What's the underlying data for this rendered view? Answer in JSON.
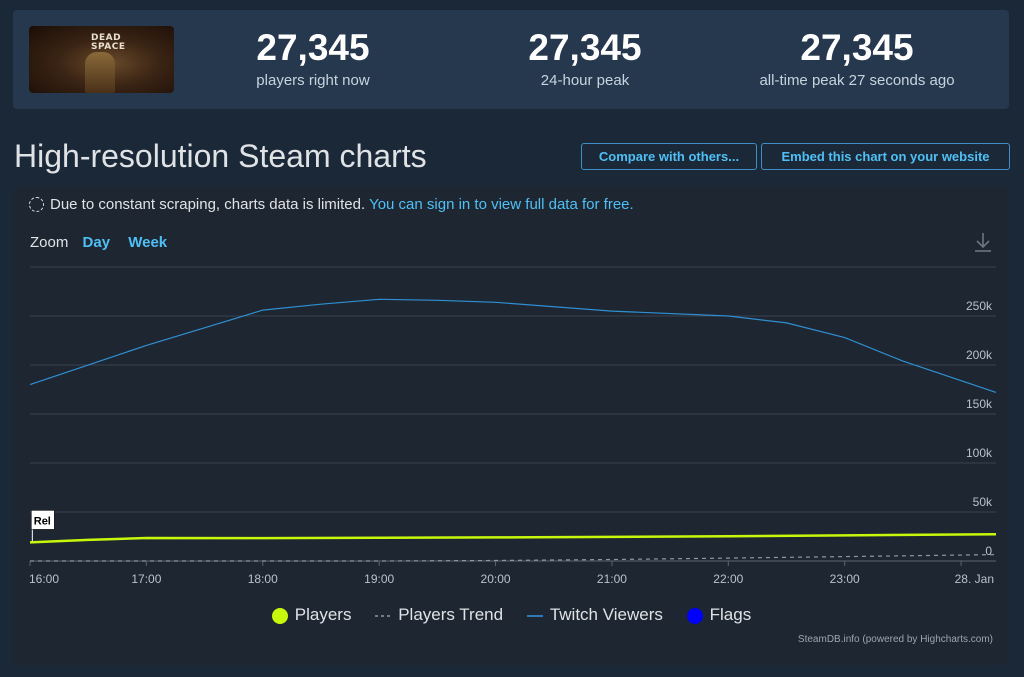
{
  "stats": {
    "game_logo_text": "DEAD SPACE",
    "players_now": {
      "value": "27,345",
      "label": "players right now"
    },
    "peak_24h": {
      "value": "27,345",
      "label": "24-hour peak"
    },
    "peak_all": {
      "value": "27,345",
      "label": "all-time peak 27 seconds ago"
    }
  },
  "page_title": "High-resolution Steam charts",
  "buttons": {
    "compare": "Compare with others...",
    "embed": "Embed this chart on your website"
  },
  "notice": {
    "text": "Due to constant scraping, charts data is limited.",
    "link": "You can sign in to view full data for free."
  },
  "zoom": {
    "label": "Zoom",
    "options": [
      "Day",
      "Week"
    ]
  },
  "chart_data": {
    "type": "line",
    "x_ticks": [
      "16:00",
      "17:00",
      "18:00",
      "19:00",
      "20:00",
      "21:00",
      "22:00",
      "23:00",
      "28. Jan"
    ],
    "y_ticks": [
      "0",
      "50k",
      "100k",
      "150k",
      "200k",
      "250k"
    ],
    "ylim": [
      0,
      300000
    ],
    "xlim": [
      16,
      24.3
    ],
    "grid": true,
    "legend_position": "bottom",
    "series": [
      {
        "name": "Players",
        "color": "#c7f70a",
        "x": [
          16.0,
          16.5,
          17.0,
          18.0,
          19.0,
          20.0,
          21.0,
          22.0,
          23.0,
          24.3
        ],
        "values": [
          19000,
          21500,
          23500,
          23400,
          23700,
          24100,
          24600,
          25300,
          26100,
          27345
        ]
      },
      {
        "name": "Players Trend",
        "color": "#8f98a0",
        "x": [
          16.0,
          17.0,
          18.0,
          19.0,
          20.0,
          21.0,
          22.0,
          23.0,
          24.3
        ],
        "values": [
          0,
          0,
          0,
          0,
          500,
          1500,
          3000,
          4500,
          6500
        ]
      },
      {
        "name": "Twitch Viewers",
        "color": "#2f8fd2",
        "x": [
          16.0,
          17.0,
          18.0,
          18.5,
          19.0,
          19.5,
          20.0,
          21.0,
          22.0,
          22.5,
          23.0,
          23.5,
          24.3
        ],
        "values": [
          180000,
          220000,
          256000,
          262000,
          267000,
          266000,
          264000,
          255000,
          250000,
          243000,
          228000,
          204000,
          172000
        ]
      },
      {
        "name": "Flags",
        "color": "#0000ff"
      }
    ],
    "flags": [
      {
        "x": 16.02,
        "label": "Rel"
      }
    ]
  },
  "credits": "SteamDB.info (powered by Highcharts.com)",
  "icons": {
    "download": "download-icon",
    "notice": "spinner-icon"
  }
}
